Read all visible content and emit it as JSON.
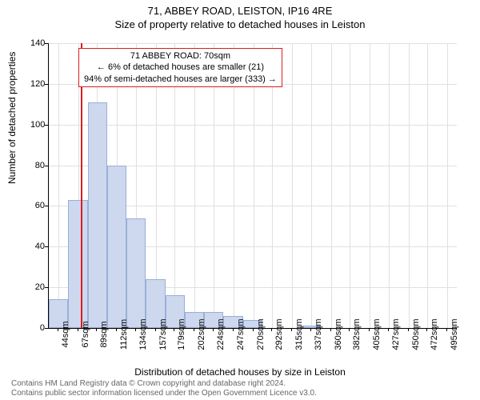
{
  "chart": {
    "type": "histogram",
    "title": "71, ABBEY ROAD, LEISTON, IP16 4RE",
    "subtitle": "Size of property relative to detached houses in Leiston",
    "xlabel": "Distribution of detached houses by size in Leiston",
    "ylabel": "Number of detached properties",
    "background_color": "#ffffff",
    "grid_color": "#e0e0e0",
    "bar_fill": "#cdd8ee",
    "bar_border": "#9aaed6",
    "marker_color": "#d91e1e",
    "marker_x": 70,
    "title_fontsize": 13,
    "label_fontsize": 12,
    "tick_fontsize": 11,
    "ylim": [
      0,
      140
    ],
    "ytick_step": 20,
    "yticks": [
      0,
      20,
      40,
      60,
      80,
      100,
      120,
      140
    ],
    "xlim": [
      33,
      506
    ],
    "xticks": [
      44,
      67,
      89,
      112,
      134,
      157,
      179,
      202,
      224,
      247,
      270,
      292,
      315,
      337,
      360,
      382,
      405,
      427,
      450,
      472,
      495
    ],
    "xtick_unit": "sqm",
    "bin_width": 22.5,
    "bars": [
      {
        "x_start": 33,
        "value": 14
      },
      {
        "x_start": 55.5,
        "value": 63
      },
      {
        "x_start": 78,
        "value": 111
      },
      {
        "x_start": 100.5,
        "value": 80
      },
      {
        "x_start": 123,
        "value": 54
      },
      {
        "x_start": 145.5,
        "value": 24
      },
      {
        "x_start": 168,
        "value": 16
      },
      {
        "x_start": 190.5,
        "value": 8
      },
      {
        "x_start": 213,
        "value": 8
      },
      {
        "x_start": 235.5,
        "value": 6
      },
      {
        "x_start": 258,
        "value": 4
      },
      {
        "x_start": 280.5,
        "value": 0
      },
      {
        "x_start": 303,
        "value": 0
      },
      {
        "x_start": 325.5,
        "value": 1
      },
      {
        "x_start": 348,
        "value": 0
      }
    ],
    "annotation": {
      "line1": "71 ABBEY ROAD: 70sqm",
      "line2": "← 6% of detached houses are smaller (21)",
      "line3": "94% of semi-detached houses are larger (333) →",
      "border_color": "#d91e1e"
    },
    "attribution": {
      "line1": "Contains HM Land Registry data © Crown copyright and database right 2024.",
      "line2": "Contains public sector information licensed under the Open Government Licence v3.0."
    }
  }
}
